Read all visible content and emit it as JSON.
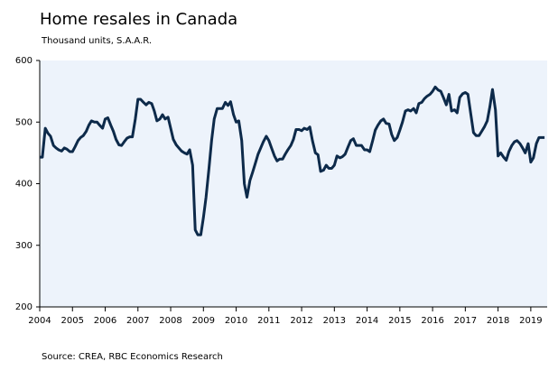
{
  "chart_data": {
    "type": "line",
    "title": "Home resales in Canada",
    "subtitle": "Thousand units, S.A.A.R.",
    "source": "Source: CREA, RBC Economics Research",
    "xlim": [
      2004,
      2019.5
    ],
    "xticks": [
      2004,
      2005,
      2006,
      2007,
      2008,
      2009,
      2010,
      2011,
      2012,
      2013,
      2014,
      2015,
      2016,
      2017,
      2018,
      2019
    ],
    "ylim": [
      200,
      600
    ],
    "yticks": [
      200,
      300,
      400,
      500,
      600
    ],
    "grid": false,
    "series": [
      {
        "color": "#0d2a4a",
        "x": [
          2004,
          2004.08,
          2004.17,
          2004.25,
          2004.33,
          2004.42,
          2004.5,
          2004.58,
          2004.67,
          2004.75,
          2004.83,
          2004.92,
          2005,
          2005.08,
          2005.17,
          2005.25,
          2005.33,
          2005.42,
          2005.5,
          2005.58,
          2005.67,
          2005.75,
          2005.83,
          2005.92,
          2006,
          2006.08,
          2006.17,
          2006.25,
          2006.33,
          2006.42,
          2006.5,
          2006.58,
          2006.67,
          2006.75,
          2006.83,
          2006.92,
          2007,
          2007.08,
          2007.17,
          2007.25,
          2007.33,
          2007.42,
          2007.5,
          2007.58,
          2007.67,
          2007.75,
          2007.83,
          2007.92,
          2008,
          2008.08,
          2008.17,
          2008.25,
          2008.33,
          2008.42,
          2008.5,
          2008.58,
          2008.67,
          2008.75,
          2008.83,
          2008.92,
          2009,
          2009.08,
          2009.17,
          2009.25,
          2009.33,
          2009.42,
          2009.5,
          2009.58,
          2009.67,
          2009.75,
          2009.83,
          2009.92,
          2010,
          2010.08,
          2010.17,
          2010.25,
          2010.33,
          2010.42,
          2010.5,
          2010.58,
          2010.67,
          2010.75,
          2010.83,
          2010.92,
          2011,
          2011.08,
          2011.17,
          2011.25,
          2011.33,
          2011.42,
          2011.5,
          2011.58,
          2011.67,
          2011.75,
          2011.83,
          2011.92,
          2012,
          2012.08,
          2012.17,
          2012.25,
          2012.33,
          2012.42,
          2012.5,
          2012.58,
          2012.67,
          2012.75,
          2012.83,
          2012.92,
          2013,
          2013.08,
          2013.17,
          2013.25,
          2013.33,
          2013.42,
          2013.5,
          2013.58,
          2013.67,
          2013.75,
          2013.83,
          2013.92,
          2014,
          2014.08,
          2014.17,
          2014.25,
          2014.33,
          2014.42,
          2014.5,
          2014.58,
          2014.67,
          2014.75,
          2014.83,
          2014.92,
          2015,
          2015.08,
          2015.17,
          2015.25,
          2015.33,
          2015.42,
          2015.5,
          2015.58,
          2015.67,
          2015.75,
          2015.83,
          2015.92,
          2016,
          2016.08,
          2016.17,
          2016.25,
          2016.33,
          2016.42,
          2016.5,
          2016.58,
          2016.67,
          2016.75,
          2016.83,
          2016.92,
          2017,
          2017.08,
          2017.17,
          2017.25,
          2017.33,
          2017.42,
          2017.5,
          2017.58,
          2017.67,
          2017.75,
          2017.83,
          2017.92,
          2018,
          2018.08,
          2018.17,
          2018.25,
          2018.33,
          2018.42,
          2018.5,
          2018.58,
          2018.67,
          2018.75,
          2018.83,
          2018.92,
          2019,
          2019.08,
          2019.17,
          2019.25,
          2019.33,
          2019.42
        ],
        "values": [
          443,
          443,
          490,
          482,
          477,
          462,
          458,
          455,
          453,
          458,
          456,
          452,
          452,
          460,
          470,
          475,
          478,
          485,
          495,
          502,
          500,
          500,
          495,
          490,
          505,
          507,
          495,
          485,
          472,
          463,
          462,
          468,
          474,
          476,
          476,
          505,
          537,
          537,
          532,
          528,
          532,
          530,
          518,
          502,
          505,
          512,
          505,
          508,
          490,
          472,
          463,
          458,
          453,
          450,
          448,
          455,
          430,
          325,
          317,
          317,
          345,
          378,
          425,
          470,
          505,
          522,
          522,
          522,
          532,
          527,
          533,
          512,
          500,
          502,
          470,
          400,
          378,
          405,
          418,
          432,
          448,
          458,
          468,
          477,
          470,
          458,
          445,
          437,
          440,
          440,
          448,
          455,
          462,
          472,
          488,
          488,
          486,
          490,
          488,
          492,
          470,
          450,
          447,
          420,
          422,
          430,
          425,
          425,
          430,
          445,
          442,
          444,
          448,
          460,
          470,
          473,
          462,
          462,
          462,
          455,
          455,
          452,
          470,
          487,
          495,
          502,
          505,
          498,
          497,
          480,
          470,
          475,
          487,
          500,
          518,
          520,
          518,
          522,
          515,
          530,
          532,
          538,
          542,
          545,
          550,
          557,
          552,
          550,
          540,
          528,
          545,
          518,
          520,
          515,
          540,
          546,
          548,
          545,
          512,
          483,
          478,
          478,
          485,
          492,
          502,
          525,
          553,
          520,
          445,
          450,
          443,
          438,
          452,
          462,
          468,
          470,
          465,
          458,
          450,
          465,
          435,
          442,
          465,
          475,
          475,
          475
        ]
      }
    ]
  }
}
